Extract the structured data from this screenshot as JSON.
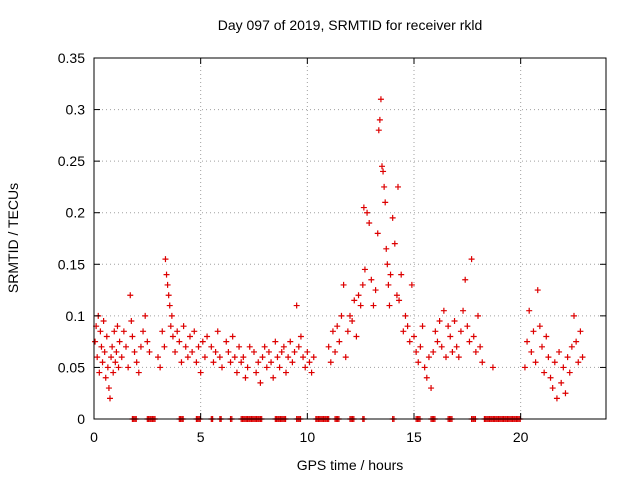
{
  "chart_data": {
    "type": "scatter",
    "title": "Day 097 of 2019, SRMTID for receiver rkld",
    "xlabel": "GPS time / hours",
    "ylabel": "SRMTID / TECUs",
    "xlim": [
      0,
      24
    ],
    "ylim": [
      0,
      0.35
    ],
    "xticks": [
      0,
      5,
      10,
      15,
      20
    ],
    "xtick_labels": [
      "0",
      "5",
      "10",
      "15",
      "20"
    ],
    "yticks": [
      0,
      0.05,
      0.1,
      0.15,
      0.2,
      0.25,
      0.3,
      0.35
    ],
    "ytick_labels": [
      "0",
      "0.05",
      "0.1",
      "0.15",
      "0.2",
      "0.25",
      "0.3",
      "0.35"
    ],
    "grid": true,
    "marker": "plus",
    "series": [
      {
        "name": "SRMTID",
        "color": "#dd0000",
        "points": [
          [
            0.05,
            0.075
          ],
          [
            0.1,
            0.09
          ],
          [
            0.15,
            0.06
          ],
          [
            0.2,
            0.1
          ],
          [
            0.25,
            0.045
          ],
          [
            0.3,
            0.085
          ],
          [
            0.35,
            0.07
          ],
          [
            0.4,
            0.055
          ],
          [
            0.45,
            0.095
          ],
          [
            0.5,
            0.065
          ],
          [
            0.55,
            0.04
          ],
          [
            0.6,
            0.08
          ],
          [
            0.65,
            0.05
          ],
          [
            0.7,
            0.03
          ],
          [
            0.75,
            0.02
          ],
          [
            0.8,
            0.06
          ],
          [
            0.85,
            0.07
          ],
          [
            0.9,
            0.045
          ],
          [
            0.95,
            0.085
          ],
          [
            1.0,
            0.055
          ],
          [
            1.05,
            0.065
          ],
          [
            1.1,
            0.09
          ],
          [
            1.15,
            0.05
          ],
          [
            1.2,
            0.075
          ],
          [
            1.3,
            0.06
          ],
          [
            1.4,
            0.085
          ],
          [
            1.5,
            0.07
          ],
          [
            1.6,
            0.05
          ],
          [
            1.7,
            0.12
          ],
          [
            1.75,
            0.095
          ],
          [
            1.8,
            0.08
          ],
          [
            1.9,
            0.065
          ],
          [
            2.0,
            0.055
          ],
          [
            2.1,
            0.045
          ],
          [
            2.2,
            0.07
          ],
          [
            2.3,
            0.085
          ],
          [
            2.4,
            0.1
          ],
          [
            2.5,
            0.075
          ],
          [
            2.6,
            0.065
          ],
          [
            3.0,
            0.06
          ],
          [
            3.1,
            0.05
          ],
          [
            3.2,
            0.085
          ],
          [
            3.3,
            0.07
          ],
          [
            3.35,
            0.155
          ],
          [
            3.4,
            0.14
          ],
          [
            3.45,
            0.13
          ],
          [
            3.5,
            0.12
          ],
          [
            3.55,
            0.11
          ],
          [
            3.6,
            0.09
          ],
          [
            3.65,
            0.1
          ],
          [
            3.7,
            0.08
          ],
          [
            3.8,
            0.065
          ],
          [
            3.9,
            0.085
          ],
          [
            4.0,
            0.075
          ],
          [
            4.1,
            0.055
          ],
          [
            4.2,
            0.09
          ],
          [
            4.3,
            0.07
          ],
          [
            4.4,
            0.06
          ],
          [
            4.5,
            0.08
          ],
          [
            4.6,
            0.065
          ],
          [
            4.7,
            0.085
          ],
          [
            4.8,
            0.055
          ],
          [
            4.9,
            0.07
          ],
          [
            5.0,
            0.045
          ],
          [
            5.1,
            0.075
          ],
          [
            5.2,
            0.06
          ],
          [
            5.3,
            0.08
          ],
          [
            5.5,
            0.07
          ],
          [
            5.6,
            0.055
          ],
          [
            5.7,
            0.065
          ],
          [
            5.8,
            0.085
          ],
          [
            5.9,
            0.06
          ],
          [
            6.0,
            0.05
          ],
          [
            6.2,
            0.075
          ],
          [
            6.3,
            0.065
          ],
          [
            6.4,
            0.055
          ],
          [
            6.5,
            0.08
          ],
          [
            6.6,
            0.06
          ],
          [
            6.7,
            0.045
          ],
          [
            6.8,
            0.07
          ],
          [
            6.9,
            0.055
          ],
          [
            7.0,
            0.06
          ],
          [
            7.1,
            0.04
          ],
          [
            7.2,
            0.05
          ],
          [
            7.3,
            0.07
          ],
          [
            7.5,
            0.065
          ],
          [
            7.6,
            0.045
          ],
          [
            7.7,
            0.055
          ],
          [
            7.8,
            0.035
          ],
          [
            7.9,
            0.06
          ],
          [
            8.0,
            0.07
          ],
          [
            8.1,
            0.05
          ],
          [
            8.2,
            0.065
          ],
          [
            8.3,
            0.055
          ],
          [
            8.4,
            0.04
          ],
          [
            8.5,
            0.075
          ],
          [
            8.6,
            0.06
          ],
          [
            8.7,
            0.05
          ],
          [
            8.8,
            0.065
          ],
          [
            8.9,
            0.07
          ],
          [
            9.0,
            0.045
          ],
          [
            9.1,
            0.06
          ],
          [
            9.2,
            0.075
          ],
          [
            9.3,
            0.055
          ],
          [
            9.4,
            0.065
          ],
          [
            9.5,
            0.11
          ],
          [
            9.6,
            0.07
          ],
          [
            9.7,
            0.08
          ],
          [
            9.8,
            0.06
          ],
          [
            9.9,
            0.05
          ],
          [
            10.0,
            0.065
          ],
          [
            10.1,
            0.055
          ],
          [
            10.2,
            0.045
          ],
          [
            10.3,
            0.06
          ],
          [
            11.0,
            0.07
          ],
          [
            11.1,
            0.055
          ],
          [
            11.2,
            0.085
          ],
          [
            11.3,
            0.065
          ],
          [
            11.4,
            0.09
          ],
          [
            11.5,
            0.075
          ],
          [
            11.6,
            0.1
          ],
          [
            11.7,
            0.13
          ],
          [
            11.8,
            0.06
          ],
          [
            11.9,
            0.085
          ],
          [
            12.0,
            0.1
          ],
          [
            12.1,
            0.095
          ],
          [
            12.2,
            0.115
          ],
          [
            12.3,
            0.08
          ],
          [
            12.4,
            0.12
          ],
          [
            12.5,
            0.11
          ],
          [
            12.6,
            0.13
          ],
          [
            12.65,
            0.205
          ],
          [
            12.7,
            0.145
          ],
          [
            12.8,
            0.2
          ],
          [
            12.9,
            0.19
          ],
          [
            13.0,
            0.135
          ],
          [
            13.1,
            0.11
          ],
          [
            13.2,
            0.125
          ],
          [
            13.3,
            0.18
          ],
          [
            13.35,
            0.28
          ],
          [
            13.4,
            0.29
          ],
          [
            13.45,
            0.31
          ],
          [
            13.5,
            0.245
          ],
          [
            13.55,
            0.24
          ],
          [
            13.6,
            0.225
          ],
          [
            13.65,
            0.21
          ],
          [
            13.7,
            0.165
          ],
          [
            13.75,
            0.15
          ],
          [
            13.8,
            0.13
          ],
          [
            13.85,
            0.11
          ],
          [
            13.9,
            0.14
          ],
          [
            14.0,
            0.195
          ],
          [
            14.1,
            0.17
          ],
          [
            14.2,
            0.12
          ],
          [
            14.25,
            0.225
          ],
          [
            14.3,
            0.115
          ],
          [
            14.4,
            0.14
          ],
          [
            14.5,
            0.085
          ],
          [
            14.6,
            0.1
          ],
          [
            14.7,
            0.09
          ],
          [
            14.8,
            0.075
          ],
          [
            14.9,
            0.13
          ],
          [
            15.0,
            0.08
          ],
          [
            15.1,
            0.065
          ],
          [
            15.2,
            0.055
          ],
          [
            15.3,
            0.07
          ],
          [
            15.4,
            0.09
          ],
          [
            15.5,
            0.05
          ],
          [
            15.6,
            0.04
          ],
          [
            15.7,
            0.06
          ],
          [
            15.8,
            0.03
          ],
          [
            15.9,
            0.065
          ],
          [
            16.0,
            0.085
          ],
          [
            16.1,
            0.075
          ],
          [
            16.2,
            0.095
          ],
          [
            16.3,
            0.07
          ],
          [
            16.4,
            0.105
          ],
          [
            16.5,
            0.06
          ],
          [
            16.6,
            0.09
          ],
          [
            16.7,
            0.08
          ],
          [
            16.8,
            0.065
          ],
          [
            16.9,
            0.095
          ],
          [
            17.0,
            0.07
          ],
          [
            17.1,
            0.06
          ],
          [
            17.2,
            0.085
          ],
          [
            17.3,
            0.105
          ],
          [
            17.4,
            0.135
          ],
          [
            17.5,
            0.09
          ],
          [
            17.6,
            0.075
          ],
          [
            17.7,
            0.155
          ],
          [
            17.8,
            0.08
          ],
          [
            17.9,
            0.065
          ],
          [
            18.0,
            0.1
          ],
          [
            18.1,
            0.07
          ],
          [
            18.2,
            0.055
          ],
          [
            18.7,
            0.05
          ],
          [
            20.2,
            0.05
          ],
          [
            20.3,
            0.075
          ],
          [
            20.4,
            0.105
          ],
          [
            20.5,
            0.065
          ],
          [
            20.6,
            0.085
          ],
          [
            20.7,
            0.055
          ],
          [
            20.8,
            0.125
          ],
          [
            20.9,
            0.09
          ],
          [
            21.0,
            0.07
          ],
          [
            21.1,
            0.045
          ],
          [
            21.2,
            0.08
          ],
          [
            21.3,
            0.06
          ],
          [
            21.4,
            0.04
          ],
          [
            21.5,
            0.03
          ],
          [
            21.6,
            0.055
          ],
          [
            21.7,
            0.02
          ],
          [
            21.8,
            0.065
          ],
          [
            21.9,
            0.035
          ],
          [
            22.0,
            0.05
          ],
          [
            22.1,
            0.025
          ],
          [
            22.2,
            0.06
          ],
          [
            22.3,
            0.045
          ],
          [
            22.4,
            0.07
          ],
          [
            22.5,
            0.1
          ],
          [
            22.6,
            0.075
          ],
          [
            22.7,
            0.055
          ],
          [
            22.8,
            0.085
          ],
          [
            22.9,
            0.06
          ]
        ]
      }
    ],
    "zero_marker_ranges": [
      [
        1.8,
        2.0
      ],
      [
        2.5,
        2.9
      ],
      [
        4.0,
        4.2
      ],
      [
        4.8,
        5.0
      ],
      [
        5.5,
        5.6
      ],
      [
        5.9,
        6.0
      ],
      [
        6.4,
        6.5
      ],
      [
        6.9,
        7.9
      ],
      [
        8.5,
        9.0
      ],
      [
        9.5,
        9.7
      ],
      [
        10.4,
        11.0
      ],
      [
        11.3,
        11.5
      ],
      [
        12.0,
        12.2
      ],
      [
        12.6,
        12.7
      ],
      [
        14.0,
        14.1
      ],
      [
        15.1,
        15.3
      ],
      [
        15.8,
        16.0
      ],
      [
        16.6,
        16.8
      ],
      [
        17.7,
        17.9
      ],
      [
        18.3,
        20.0
      ]
    ]
  }
}
